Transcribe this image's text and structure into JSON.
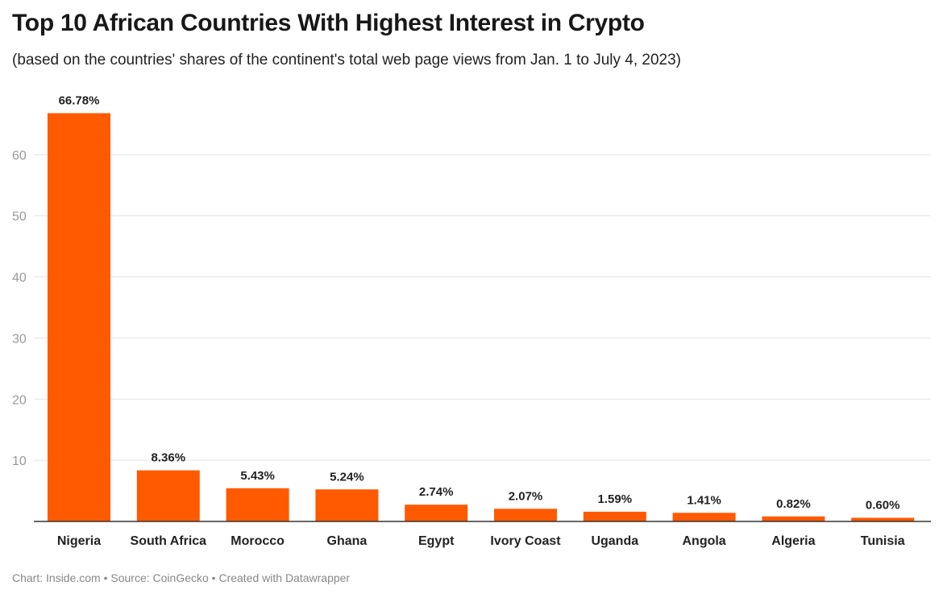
{
  "chart_data": {
    "type": "bar",
    "title": "Top 10 African Countries With Highest Interest in Crypto",
    "subtitle": "(based on the countries' shares of the continent's total web page views from Jan. 1 to July 4, 2023)",
    "categories": [
      "Nigeria",
      "South Africa",
      "Morocco",
      "Ghana",
      "Egypt",
      "Ivory Coast",
      "Uganda",
      "Angola",
      "Algeria",
      "Tunisia"
    ],
    "values": [
      66.78,
      8.36,
      5.43,
      5.24,
      2.74,
      2.07,
      1.59,
      1.41,
      0.82,
      0.6
    ],
    "value_labels": [
      "66.78%",
      "8.36%",
      "5.43%",
      "5.24%",
      "2.74%",
      "2.07%",
      "1.59%",
      "1.41%",
      "0.82%",
      "0.60%"
    ],
    "yticks": [
      10,
      20,
      30,
      40,
      50,
      60
    ],
    "ylim": [
      0,
      70
    ],
    "grid": true,
    "bar_color": "#ff5a00"
  },
  "footer": "Chart: Inside.com • Source: CoinGecko • Created with Datawrapper"
}
